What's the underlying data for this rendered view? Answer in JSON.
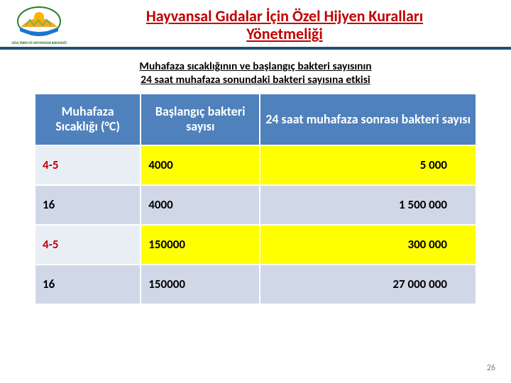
{
  "header": {
    "logo_caption": "GIDA,TARIM VE HAYVANCILIK BAKANLIĞI",
    "title_line1": "Hayvansal Gıdalar İçin Özel Hijyen Kuralları",
    "title_line2": "Yönetmeliği"
  },
  "subtitle_line1": "Muhafaza sıcaklığının ve başlangıç bakteri sayısının",
  "subtitle_line2": "24 saat muhafaza sonundaki bakteri sayısına etkisi",
  "table": {
    "columns": [
      "Muhafaza Sıcaklığı (°C)",
      "Başlangıç bakteri sayısı",
      "24 saat muhafaza sonrası bakteri sayısı"
    ],
    "rows": [
      {
        "temp": "4-5",
        "start": "4000",
        "after": "5 000",
        "temp_color": "#c00000",
        "bg0": "#e9edf4",
        "bg1": "#ffff00",
        "bg2": "#ffff00"
      },
      {
        "temp": "16",
        "start": "4000",
        "after": "1 500 000",
        "temp_color": "#000000",
        "bg0": "#d0d8e8",
        "bg1": "#d0d8e8",
        "bg2": "#d0d8e8"
      },
      {
        "temp": "4-5",
        "start": "150000",
        "after": "300 000",
        "temp_color": "#c00000",
        "bg0": "#e9edf4",
        "bg1": "#ffff00",
        "bg2": "#ffff00"
      },
      {
        "temp": "16",
        "start": "150000",
        "after": "27 000 000",
        "temp_color": "#000000",
        "bg0": "#d0d8e8",
        "bg1": "#d0d8e8",
        "bg2": "#d0d8e8"
      }
    ]
  },
  "page_number": "26",
  "colors": {
    "title_red": "#c00000",
    "header_bar": "#1f4e79",
    "th_bg": "#4f81bd",
    "row_light": "#e9edf4",
    "row_dark": "#d0d8e8",
    "highlight": "#ffff00"
  }
}
